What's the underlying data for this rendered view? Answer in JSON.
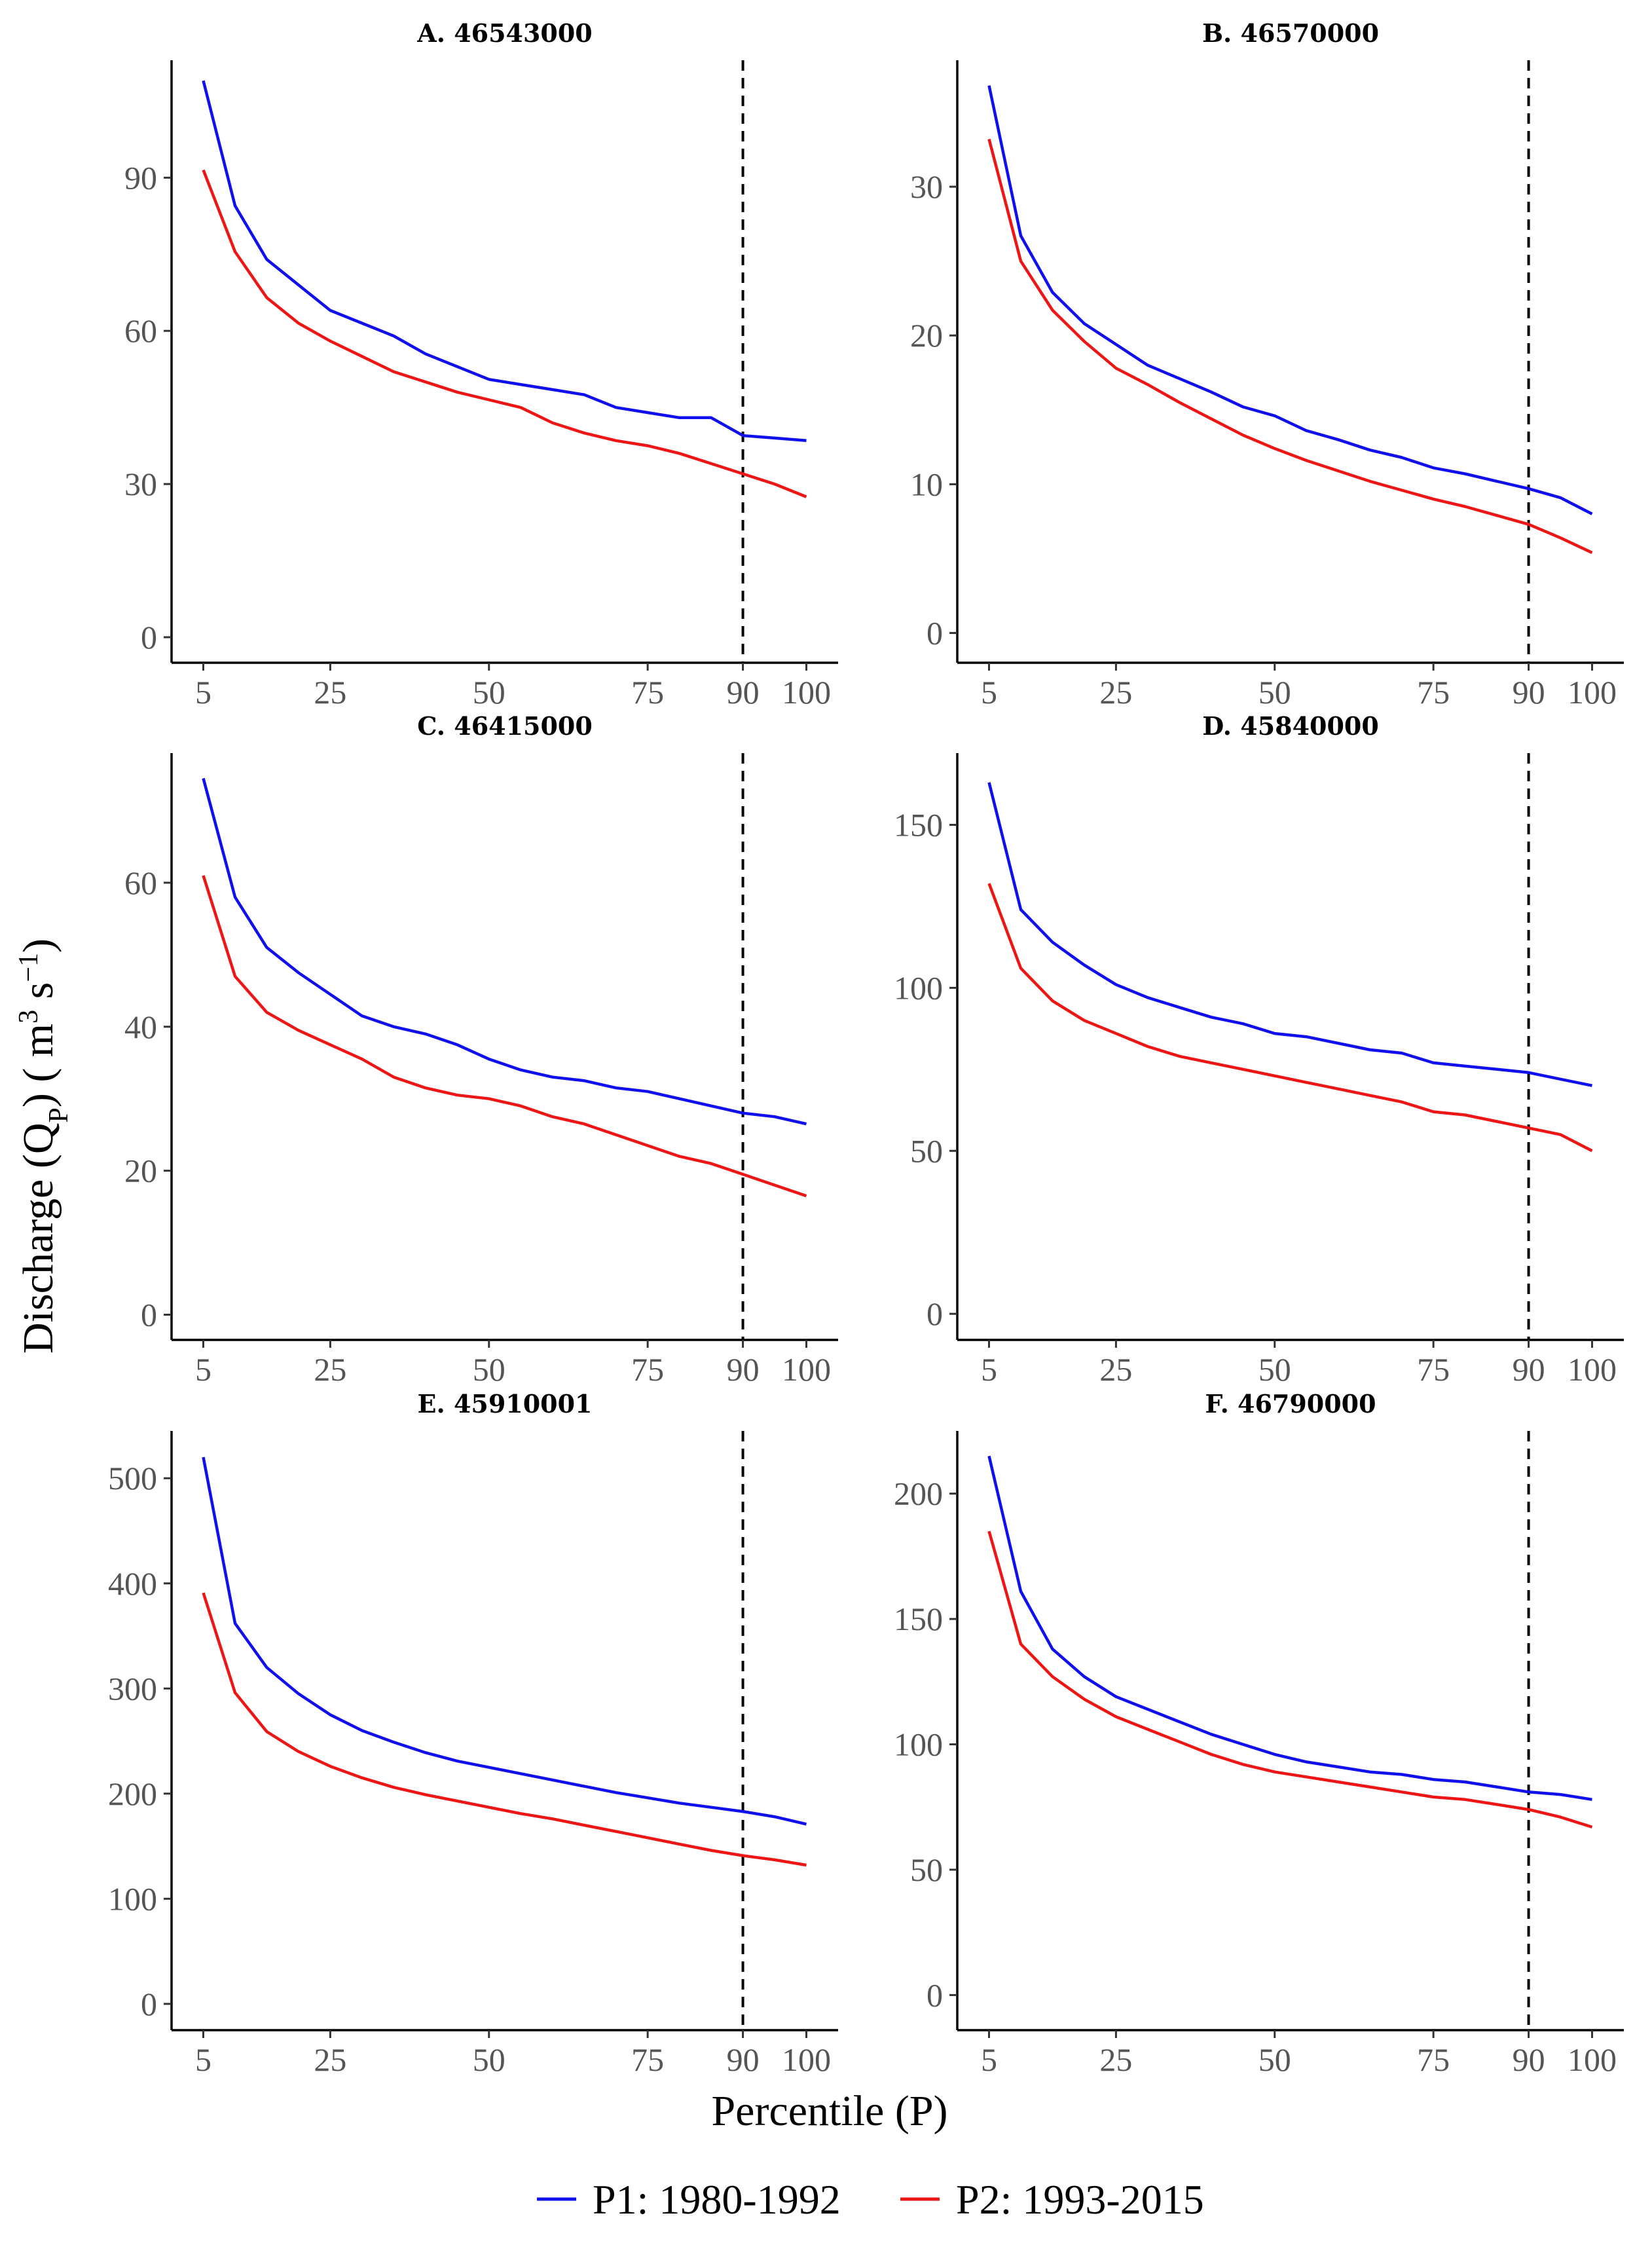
{
  "y_axis_title": "Discharge (QP) ( m3 s−1)",
  "y_axis_title_parts": {
    "main": "Discharge (Q",
    "sub": "P",
    "mid": ") ( m",
    "sup1": "3",
    "mid2": " s",
    "sup2": "−1",
    "end": ")"
  },
  "x_axis_title": "Percentile (P)",
  "legend": [
    {
      "label": "P1: 1980-1992",
      "color": "#1010ee"
    },
    {
      "label": "P2: 1993-2015",
      "color": "#ee1515"
    }
  ],
  "chart_data": [
    {
      "type": "line",
      "title": "A. 46543000",
      "x": [
        5,
        10,
        15,
        20,
        25,
        30,
        35,
        40,
        45,
        50,
        55,
        60,
        65,
        70,
        75,
        80,
        85,
        90,
        95,
        100
      ],
      "xticks": [
        5,
        25,
        50,
        75,
        90,
        100
      ],
      "xlim": [
        0,
        105
      ],
      "yticks": [
        0,
        30,
        60,
        90
      ],
      "ylim": [
        -5,
        113
      ],
      "vline": 90,
      "series": [
        {
          "name": "P1: 1980-1992",
          "color": "#1010ee",
          "values": [
            109,
            84.5,
            74,
            69,
            64,
            61.5,
            59,
            55.5,
            53,
            50.5,
            49.5,
            48.5,
            47.5,
            45,
            44,
            43,
            43,
            39.5,
            39,
            38.5
          ]
        },
        {
          "name": "P2: 1993-2015",
          "color": "#ee1515",
          "values": [
            91.5,
            75.5,
            66.5,
            61.5,
            58,
            55,
            52,
            50,
            48,
            46.5,
            45,
            42,
            40,
            38.5,
            37.5,
            36,
            34,
            32,
            30,
            27.5
          ]
        }
      ]
    },
    {
      "type": "line",
      "title": "B. 46570000",
      "x": [
        5,
        10,
        15,
        20,
        25,
        30,
        35,
        40,
        45,
        50,
        55,
        60,
        65,
        70,
        75,
        80,
        85,
        90,
        95,
        100
      ],
      "xticks": [
        5,
        25,
        50,
        75,
        90,
        100
      ],
      "xlim": [
        0,
        105
      ],
      "yticks": [
        0,
        10,
        20,
        30
      ],
      "ylim": [
        -2,
        38.5
      ],
      "vline": 90,
      "series": [
        {
          "name": "P1: 1980-1992",
          "color": "#1010ee",
          "values": [
            36.8,
            26.7,
            22.9,
            20.8,
            19.4,
            18.0,
            17.1,
            16.2,
            15.2,
            14.6,
            13.6,
            13.0,
            12.3,
            11.8,
            11.1,
            10.7,
            10.2,
            9.7,
            9.1,
            8.0
          ]
        },
        {
          "name": "P2: 1993-2015",
          "color": "#ee1515",
          "values": [
            33.2,
            25.0,
            21.7,
            19.6,
            17.8,
            16.7,
            15.5,
            14.4,
            13.3,
            12.4,
            11.6,
            10.9,
            10.2,
            9.6,
            9.0,
            8.5,
            7.9,
            7.3,
            6.4,
            5.4
          ]
        }
      ]
    },
    {
      "type": "line",
      "title": "C. 46415000",
      "x": [
        5,
        10,
        15,
        20,
        25,
        30,
        35,
        40,
        45,
        50,
        55,
        60,
        65,
        70,
        75,
        80,
        85,
        90,
        95,
        100
      ],
      "xticks": [
        5,
        25,
        50,
        75,
        90,
        100
      ],
      "xlim": [
        0,
        105
      ],
      "yticks": [
        0,
        20,
        40,
        60
      ],
      "ylim": [
        -3.5,
        78
      ],
      "vline": 90,
      "series": [
        {
          "name": "P1: 1980-1992",
          "color": "#1010ee",
          "values": [
            74.5,
            58,
            51,
            47.5,
            44.5,
            41.5,
            40,
            39,
            37.5,
            35.5,
            34,
            33,
            32.5,
            31.5,
            31,
            30,
            29,
            28,
            27.5,
            26.5
          ]
        },
        {
          "name": "P2: 1993-2015",
          "color": "#ee1515",
          "values": [
            61,
            47,
            42,
            39.5,
            37.5,
            35.5,
            33,
            31.5,
            30.5,
            30,
            29,
            27.5,
            26.5,
            25,
            23.5,
            22,
            21,
            19.5,
            18,
            16.5
          ]
        }
      ]
    },
    {
      "type": "line",
      "title": "D. 45840000",
      "x": [
        5,
        10,
        15,
        20,
        25,
        30,
        35,
        40,
        45,
        50,
        55,
        60,
        65,
        70,
        75,
        80,
        85,
        90,
        95,
        100
      ],
      "xticks": [
        5,
        25,
        50,
        75,
        90,
        100
      ],
      "xlim": [
        0,
        105
      ],
      "yticks": [
        0,
        50,
        100,
        150
      ],
      "ylim": [
        -8,
        172
      ],
      "vline": 90,
      "series": [
        {
          "name": "P1: 1980-1992",
          "color": "#1010ee",
          "values": [
            163,
            124,
            114,
            107,
            101,
            97,
            94,
            91,
            89,
            86,
            85,
            83,
            81,
            80,
            77,
            76,
            75,
            74,
            72,
            70
          ]
        },
        {
          "name": "P2: 1993-2015",
          "color": "#ee1515",
          "values": [
            132,
            106,
            96,
            90,
            86,
            82,
            79,
            77,
            75,
            73,
            71,
            69,
            67,
            65,
            62,
            61,
            59,
            57,
            55,
            50
          ]
        }
      ]
    },
    {
      "type": "line",
      "title": "E. 45910001",
      "x": [
        5,
        10,
        15,
        20,
        25,
        30,
        35,
        40,
        45,
        50,
        55,
        60,
        65,
        70,
        75,
        80,
        85,
        90,
        95,
        100
      ],
      "xticks": [
        5,
        25,
        50,
        75,
        90,
        100
      ],
      "xlim": [
        0,
        105
      ],
      "yticks": [
        0,
        100,
        200,
        300,
        400,
        500
      ],
      "ylim": [
        -25,
        545
      ],
      "vline": 90,
      "series": [
        {
          "name": "P1: 1980-1992",
          "color": "#1010ee",
          "values": [
            520,
            362,
            320,
            295,
            275,
            260,
            249,
            239,
            231,
            225,
            219,
            213,
            207,
            201,
            196,
            191,
            187,
            183,
            178,
            171
          ]
        },
        {
          "name": "P2: 1993-2015",
          "color": "#ee1515",
          "values": [
            391,
            296,
            259,
            240,
            226,
            215,
            206,
            199,
            193,
            187,
            181,
            176,
            170,
            164,
            158,
            152,
            146,
            141,
            137,
            132
          ]
        }
      ]
    },
    {
      "type": "line",
      "title": "F. 46790000",
      "x": [
        5,
        10,
        15,
        20,
        25,
        30,
        35,
        40,
        45,
        50,
        55,
        60,
        65,
        70,
        75,
        80,
        85,
        90,
        95,
        100
      ],
      "xticks": [
        5,
        25,
        50,
        75,
        90,
        100
      ],
      "xlim": [
        0,
        105
      ],
      "yticks": [
        0,
        50,
        100,
        150,
        200
      ],
      "ylim": [
        -14,
        225
      ],
      "vline": 90,
      "series": [
        {
          "name": "P1: 1980-1992",
          "color": "#1010ee",
          "values": [
            215,
            161,
            138,
            127,
            119,
            114,
            109,
            104,
            100,
            96,
            93,
            91,
            89,
            88,
            86,
            85,
            83,
            81,
            80,
            78
          ]
        },
        {
          "name": "P2: 1993-2015",
          "color": "#ee1515",
          "values": [
            185,
            140,
            127,
            118,
            111,
            106,
            101,
            96,
            92,
            89,
            87,
            85,
            83,
            81,
            79,
            78,
            76,
            74,
            71,
            67
          ]
        }
      ]
    }
  ]
}
